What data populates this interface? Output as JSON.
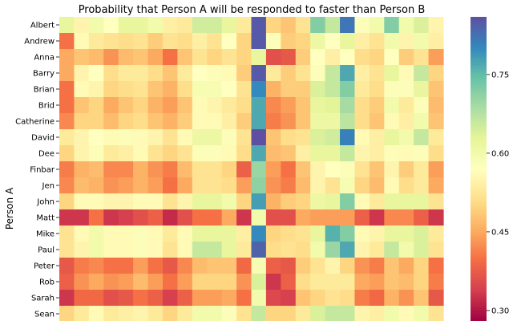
{
  "chart_data": {
    "type": "heatmap",
    "title": "Probability that Person A will be responded to faster than Person B",
    "ylabel": "Person A",
    "rows": [
      "Albert",
      "Andrew",
      "Anna",
      "Barry",
      "Brian",
      "Brid",
      "Catherine",
      "David",
      "Dee",
      "Finbar",
      "Jen",
      "John",
      "Matt",
      "Mike",
      "Paul",
      "Peter",
      "Rob",
      "Sarah",
      "Sean"
    ],
    "colorbar": {
      "ticks": [
        "0.75",
        "0.60",
        "0.45",
        "0.30"
      ],
      "range": [
        0.28,
        0.86
      ],
      "colormap": "Spectral"
    },
    "values": [
      [
        0.62,
        0.55,
        0.6,
        0.57,
        0.62,
        0.62,
        0.6,
        0.54,
        0.53,
        0.65,
        0.65,
        0.62,
        0.53,
        0.85,
        0.5,
        0.48,
        0.52,
        0.72,
        0.66,
        0.82,
        0.58,
        0.6,
        0.72,
        0.6,
        0.64,
        0.55
      ],
      [
        0.4,
        0.56,
        0.53,
        0.52,
        0.51,
        0.52,
        0.49,
        0.52,
        0.51,
        0.54,
        0.52,
        0.57,
        0.5,
        0.85,
        0.58,
        0.49,
        0.5,
        0.61,
        0.57,
        0.62,
        0.54,
        0.52,
        0.6,
        0.55,
        0.6,
        0.54
      ],
      [
        0.45,
        0.48,
        0.47,
        0.43,
        0.47,
        0.48,
        0.45,
        0.4,
        0.48,
        0.52,
        0.5,
        0.52,
        0.5,
        0.62,
        0.36,
        0.37,
        0.49,
        0.57,
        0.54,
        0.57,
        0.51,
        0.5,
        0.57,
        0.49,
        0.52,
        0.44
      ],
      [
        0.45,
        0.55,
        0.57,
        0.51,
        0.53,
        0.53,
        0.51,
        0.48,
        0.53,
        0.57,
        0.58,
        0.56,
        0.49,
        0.85,
        0.53,
        0.49,
        0.52,
        0.58,
        0.66,
        0.77,
        0.54,
        0.52,
        0.62,
        0.56,
        0.66,
        0.5
      ],
      [
        0.4,
        0.56,
        0.55,
        0.5,
        0.51,
        0.52,
        0.48,
        0.46,
        0.51,
        0.59,
        0.59,
        0.57,
        0.52,
        0.8,
        0.46,
        0.49,
        0.49,
        0.64,
        0.66,
        0.72,
        0.53,
        0.51,
        0.58,
        0.58,
        0.62,
        0.48
      ],
      [
        0.4,
        0.48,
        0.5,
        0.45,
        0.48,
        0.5,
        0.46,
        0.44,
        0.48,
        0.56,
        0.55,
        0.53,
        0.51,
        0.77,
        0.42,
        0.44,
        0.48,
        0.62,
        0.63,
        0.69,
        0.51,
        0.49,
        0.6,
        0.53,
        0.58,
        0.47
      ],
      [
        0.42,
        0.5,
        0.5,
        0.47,
        0.5,
        0.51,
        0.48,
        0.46,
        0.49,
        0.56,
        0.56,
        0.54,
        0.49,
        0.77,
        0.41,
        0.43,
        0.48,
        0.61,
        0.61,
        0.67,
        0.51,
        0.48,
        0.56,
        0.54,
        0.6,
        0.48
      ],
      [
        0.53,
        0.55,
        0.57,
        0.56,
        0.58,
        0.56,
        0.55,
        0.52,
        0.56,
        0.61,
        0.61,
        0.58,
        0.52,
        0.86,
        0.48,
        0.51,
        0.52,
        0.64,
        0.65,
        0.81,
        0.56,
        0.54,
        0.62,
        0.6,
        0.66,
        0.53
      ],
      [
        0.5,
        0.55,
        0.58,
        0.53,
        0.54,
        0.56,
        0.52,
        0.5,
        0.52,
        0.58,
        0.58,
        0.56,
        0.51,
        0.77,
        0.47,
        0.48,
        0.54,
        0.62,
        0.62,
        0.66,
        0.55,
        0.54,
        0.58,
        0.56,
        0.58,
        0.51
      ],
      [
        0.41,
        0.46,
        0.47,
        0.42,
        0.42,
        0.46,
        0.43,
        0.41,
        0.47,
        0.52,
        0.52,
        0.5,
        0.38,
        0.7,
        0.44,
        0.4,
        0.48,
        0.55,
        0.57,
        0.58,
        0.52,
        0.48,
        0.55,
        0.49,
        0.53,
        0.44
      ],
      [
        0.42,
        0.47,
        0.46,
        0.43,
        0.44,
        0.46,
        0.44,
        0.4,
        0.45,
        0.52,
        0.52,
        0.51,
        0.44,
        0.71,
        0.43,
        0.41,
        0.47,
        0.55,
        0.52,
        0.59,
        0.5,
        0.47,
        0.56,
        0.51,
        0.53,
        0.45
      ],
      [
        0.5,
        0.56,
        0.56,
        0.55,
        0.55,
        0.56,
        0.56,
        0.52,
        0.55,
        0.62,
        0.62,
        0.6,
        0.5,
        0.78,
        0.46,
        0.49,
        0.5,
        0.61,
        0.62,
        0.72,
        0.56,
        0.53,
        0.62,
        0.62,
        0.62,
        0.52
      ],
      [
        0.33,
        0.33,
        0.4,
        0.33,
        0.34,
        0.36,
        0.38,
        0.32,
        0.36,
        0.4,
        0.4,
        0.45,
        0.33,
        0.6,
        0.36,
        0.36,
        0.45,
        0.44,
        0.44,
        0.44,
        0.38,
        0.33,
        0.42,
        0.42,
        0.38,
        0.33
      ],
      [
        0.52,
        0.56,
        0.6,
        0.56,
        0.56,
        0.58,
        0.56,
        0.53,
        0.56,
        0.62,
        0.62,
        0.62,
        0.54,
        0.8,
        0.5,
        0.51,
        0.52,
        0.62,
        0.76,
        0.72,
        0.56,
        0.55,
        0.62,
        0.62,
        0.64,
        0.53
      ],
      [
        0.52,
        0.55,
        0.6,
        0.56,
        0.56,
        0.58,
        0.56,
        0.52,
        0.56,
        0.66,
        0.66,
        0.62,
        0.53,
        0.84,
        0.51,
        0.52,
        0.51,
        0.6,
        0.7,
        0.77,
        0.55,
        0.53,
        0.66,
        0.6,
        0.64,
        0.52
      ],
      [
        0.37,
        0.41,
        0.42,
        0.4,
        0.4,
        0.44,
        0.4,
        0.37,
        0.42,
        0.47,
        0.48,
        0.48,
        0.39,
        0.59,
        0.38,
        0.37,
        0.49,
        0.52,
        0.55,
        0.5,
        0.43,
        0.41,
        0.48,
        0.45,
        0.5,
        0.4
      ],
      [
        0.38,
        0.43,
        0.45,
        0.43,
        0.44,
        0.47,
        0.44,
        0.4,
        0.44,
        0.5,
        0.5,
        0.5,
        0.43,
        0.64,
        0.33,
        0.38,
        0.51,
        0.53,
        0.53,
        0.53,
        0.45,
        0.44,
        0.48,
        0.47,
        0.5,
        0.41
      ],
      [
        0.33,
        0.39,
        0.39,
        0.36,
        0.37,
        0.4,
        0.38,
        0.34,
        0.38,
        0.44,
        0.44,
        0.45,
        0.4,
        0.6,
        0.35,
        0.34,
        0.48,
        0.5,
        0.52,
        0.51,
        0.41,
        0.39,
        0.46,
        0.43,
        0.48,
        0.37
      ],
      [
        0.5,
        0.53,
        0.56,
        0.53,
        0.54,
        0.55,
        0.53,
        0.5,
        0.53,
        0.6,
        0.6,
        0.58,
        0.52,
        0.66,
        0.5,
        0.5,
        0.53,
        0.64,
        0.66,
        0.66,
        0.55,
        0.54,
        0.6,
        0.56,
        0.6,
        0.52
      ]
    ]
  }
}
